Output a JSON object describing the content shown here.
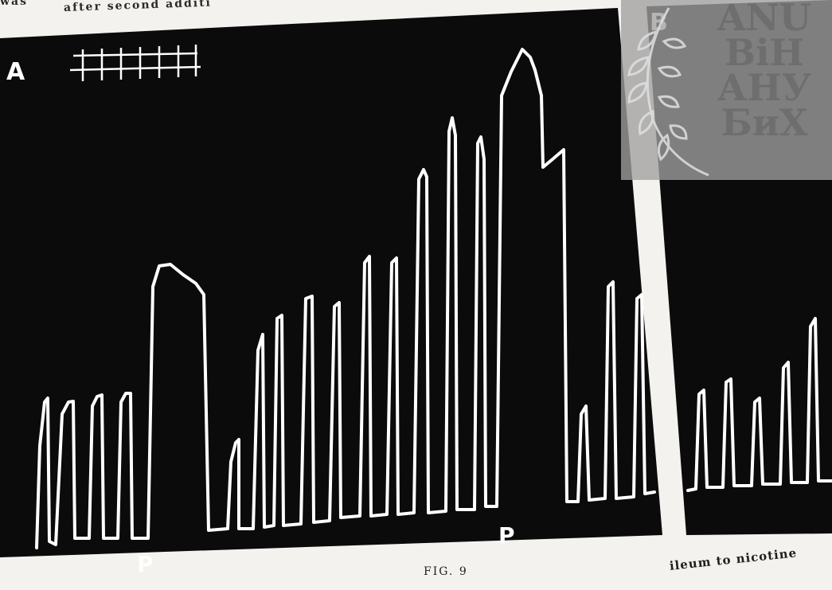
{
  "page": {
    "header_line_1": "was",
    "header_line_2": "after second additi",
    "figure_caption": "FIG. 9",
    "footer_text": "ileum to nicotine"
  },
  "figure": {
    "panel_a_label": "A",
    "panel_b_label": "B",
    "marker_label": "P",
    "background": "#0b0b0b",
    "trace_color": "#ffffff"
  },
  "watermark": {
    "lines": [
      "ANU",
      "BiH",
      "АНУ",
      "БиХ"
    ]
  }
}
